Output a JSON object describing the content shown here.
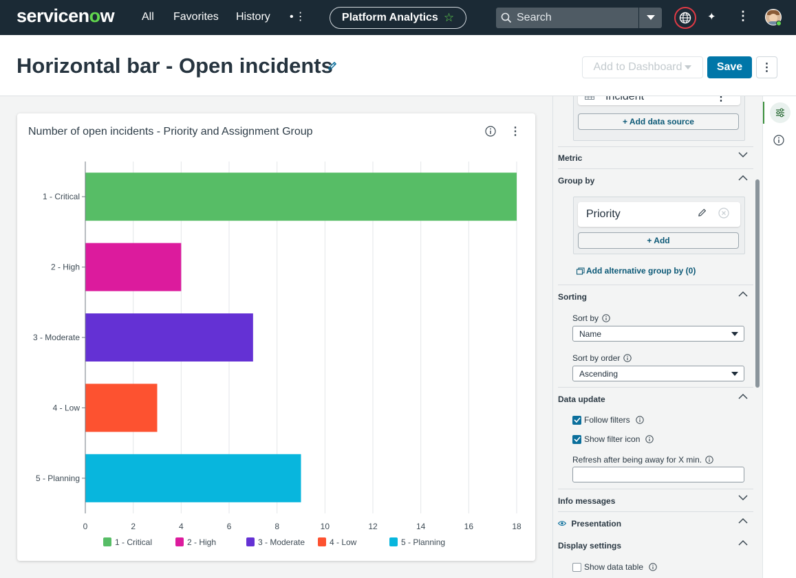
{
  "nav": {
    "logo_main": "servicen",
    "logo_o": "o",
    "logo_end": "w",
    "items": [
      "All",
      "Favorites",
      "History"
    ],
    "more": "•⋮",
    "workspace": "Platform Analytics",
    "search_placeholder": "Search"
  },
  "header": {
    "title": "Horizontal bar - Open incidents",
    "add_to_dashboard": "Add to Dashboard",
    "save": "Save"
  },
  "card": {
    "title": "Number of open incidents - Priority and Assignment Group"
  },
  "chart_data": {
    "type": "bar",
    "orientation": "horizontal",
    "title": "Number of open incidents - Priority and Assignment Group",
    "categories": [
      "1 - Critical",
      "2 - High",
      "3 - Moderate",
      "4 - Low",
      "5 - Planning"
    ],
    "values": [
      18,
      4,
      7,
      3,
      9
    ],
    "colors": [
      "#57bd66",
      "#dc1b9d",
      "#6431d4",
      "#fd5230",
      "#08b6dd"
    ],
    "xlim": [
      0,
      18
    ],
    "xticks": [
      0,
      2,
      4,
      6,
      8,
      10,
      12,
      14,
      16,
      18
    ],
    "grid": true,
    "legend": [
      "1 - Critical",
      "2 - High",
      "3 - Moderate",
      "4 - Low",
      "5 - Planning"
    ],
    "legend_position": "bottom"
  },
  "panel": {
    "data_source": "Incident",
    "add_data_source": "+ Add data source",
    "metric": "Metric",
    "group_by": "Group by",
    "group_by_item": "Priority",
    "add": "+ Add",
    "add_alt_group": "Add alternative group by (0)",
    "sorting": "Sorting",
    "sort_by_label": "Sort by",
    "sort_by_value": "Name",
    "sort_order_label": "Sort by order",
    "sort_order_value": "Ascending",
    "data_update": "Data update",
    "follow_filters": "Follow filters",
    "show_filter_icon": "Show filter icon",
    "refresh_label": "Refresh after being away for X min.",
    "info_messages": "Info messages",
    "presentation": "Presentation",
    "display_settings": "Display settings",
    "show_data_table": "Show data table"
  },
  "colors": {
    "nav_bg": "#1b2a35",
    "accent": "#62d84e",
    "primary_button": "#0076a8",
    "link": "#0b5876"
  }
}
